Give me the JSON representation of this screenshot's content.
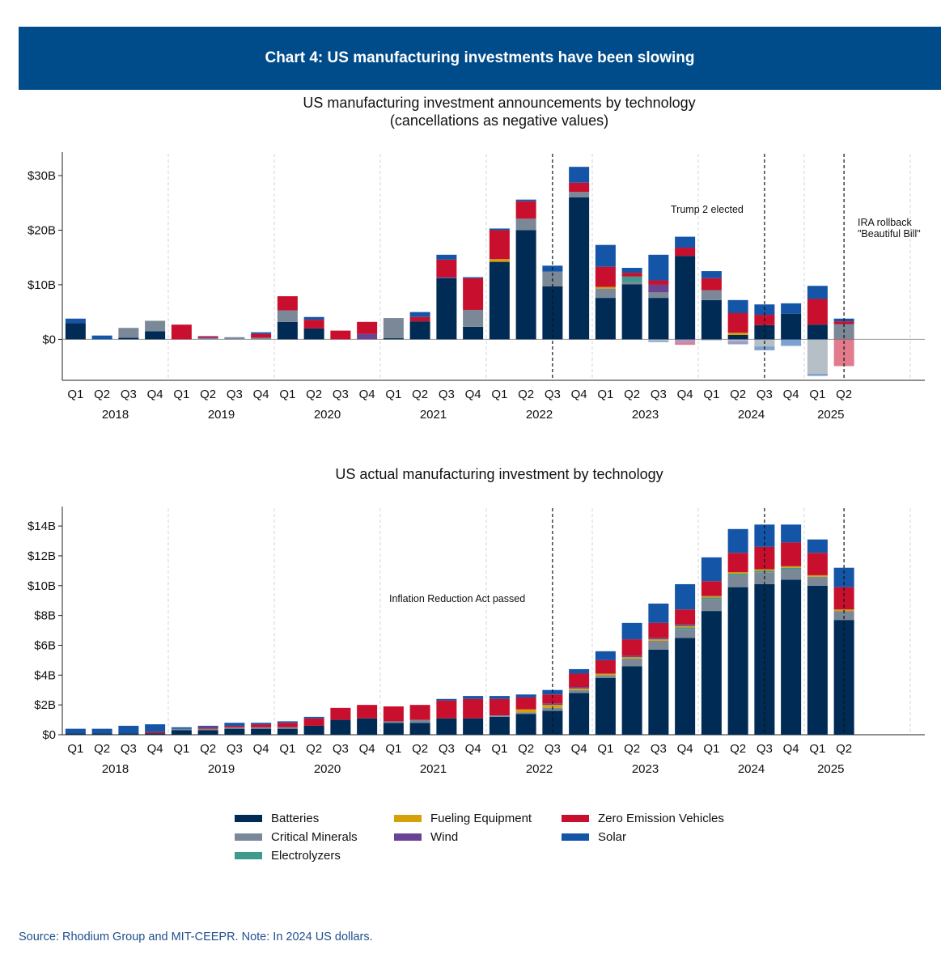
{
  "header": {
    "title": "Chart 4: US manufacturing investments have been slowing"
  },
  "source": "Source: Rhodium Group and MIT-CEEPR. Note: In 2024 US dollars.",
  "colors": {
    "Batteries": "#002b54",
    "Critical Minerals": "#7a8898",
    "Electrolyzers": "#3f9a8e",
    "Fueling Equipment": "#d4a10a",
    "Wind": "#6a4494",
    "Zero Emission Vehicles": "#c8102e",
    "Solar": "#1455a8"
  },
  "chart_data": [
    {
      "type": "bar",
      "stacked": true,
      "title": "US manufacturing investment announcements by technology",
      "subtitle": "(cancellations as negative values)",
      "xlabel": "",
      "ylabel": "",
      "ylim": [
        -7.5,
        34
      ],
      "yticks": [
        0,
        10,
        20,
        30
      ],
      "ytick_labels": [
        "$0",
        "$10B",
        "$20B",
        "$30B"
      ],
      "quarters": [
        "Q1",
        "Q2",
        "Q3",
        "Q4",
        "Q1",
        "Q2",
        "Q3",
        "Q4",
        "Q1",
        "Q2",
        "Q3",
        "Q4",
        "Q1",
        "Q2",
        "Q3",
        "Q4",
        "Q1",
        "Q2",
        "Q3",
        "Q4",
        "Q1",
        "Q2",
        "Q3",
        "Q4",
        "Q1",
        "Q2",
        "Q3",
        "Q4",
        "Q1",
        "Q2"
      ],
      "years": [
        "2018",
        "2019",
        "2020",
        "2021",
        "2022",
        "2023",
        "2024",
        "2025"
      ],
      "annotations": [
        {
          "text": "Trump 2 elected",
          "after_index": 26
        },
        {
          "text": "IRA rollback",
          "text2": "\"Beautiful Bill\"",
          "after_index": 29
        }
      ],
      "event_lines_at_index": [
        18,
        26,
        29
      ],
      "series": [
        {
          "name": "Batteries",
          "values": [
            3,
            0,
            0.3,
            1.5,
            0,
            0,
            0,
            0,
            3.2,
            2,
            0,
            0,
            0.2,
            3.3,
            11.2,
            2.3,
            14.2,
            20,
            9.7,
            26,
            7.6,
            10.1,
            7.6,
            15.3,
            7.2,
            0.8,
            2.6,
            4.7,
            2.7,
            0
          ]
        },
        {
          "name": "Critical Minerals",
          "values": [
            0,
            0,
            1.8,
            1.9,
            0,
            0.2,
            0.4,
            0.3,
            2.1,
            0,
            0,
            0,
            3.7,
            0,
            0,
            3.1,
            0,
            2.1,
            2.7,
            1,
            1.7,
            0.4,
            1,
            0,
            1.8,
            0,
            0,
            0,
            0,
            2.8
          ]
        },
        {
          "name": "Electrolyzers",
          "values": [
            0,
            0,
            0,
            0,
            0,
            0,
            0,
            0,
            0,
            0,
            0,
            0,
            0,
            0,
            0,
            0,
            0,
            0,
            0,
            0,
            0,
            1,
            0,
            0,
            0,
            0,
            0,
            0,
            0,
            0
          ]
        },
        {
          "name": "Fueling Equipment",
          "values": [
            0,
            0,
            0,
            0,
            0,
            0,
            0,
            0,
            0,
            0,
            0,
            0,
            0,
            0,
            0,
            0,
            0.5,
            0,
            0,
            0,
            0.3,
            0,
            0,
            0,
            0,
            0.4,
            0,
            0,
            0,
            0
          ]
        },
        {
          "name": "Wind",
          "values": [
            0,
            0,
            0,
            0,
            0,
            0.2,
            0,
            0,
            0,
            0,
            0,
            1,
            0,
            0,
            0.2,
            0,
            0,
            0,
            0,
            0,
            0,
            0,
            1.4,
            0,
            0,
            0,
            0,
            0,
            0,
            0
          ]
        },
        {
          "name": "Zero Emission Vehicles",
          "values": [
            0,
            0,
            0,
            0,
            2.7,
            0.2,
            0,
            0.7,
            2.6,
            1.6,
            1.6,
            2.2,
            0,
            0.8,
            3.2,
            5.8,
            5.3,
            3.2,
            0,
            1.7,
            3.7,
            0.7,
            0.8,
            1.5,
            2.2,
            3.6,
            1.9,
            0,
            4.7,
            0.5
          ]
        },
        {
          "name": "Solar",
          "values": [
            0.8,
            0.7,
            0,
            0,
            0,
            0,
            0,
            0.3,
            0,
            0.5,
            0,
            0,
            0,
            0.9,
            0.9,
            0.2,
            0.3,
            0.3,
            1.1,
            2.9,
            4,
            0.9,
            4.7,
            2,
            1.3,
            2.4,
            1.9,
            1.9,
            2.4,
            0.5
          ]
        }
      ],
      "negative_series": [
        {
          "name": "Batteries",
          "values": [
            0,
            0,
            0,
            0,
            0,
            0,
            0,
            0,
            0,
            0,
            0,
            0,
            0,
            0,
            0,
            0,
            0,
            0,
            0,
            0,
            0,
            0,
            0,
            0,
            0,
            0,
            0,
            0,
            0,
            0
          ]
        },
        {
          "name": "Critical Minerals",
          "values": [
            0,
            0,
            0,
            0,
            0,
            0,
            0,
            0,
            0,
            0,
            0,
            0,
            0,
            0,
            0,
            0,
            0,
            0,
            0,
            0,
            0,
            0,
            -0.3,
            0,
            -0.2,
            -0.3,
            -1.3,
            0,
            -6.3,
            0
          ]
        },
        {
          "name": "Wind",
          "values": [
            0,
            0,
            0,
            0,
            0,
            0,
            0,
            0,
            0,
            0,
            0,
            0,
            0,
            0,
            0,
            0,
            0,
            0,
            0,
            0,
            0,
            0,
            0,
            -0.6,
            0,
            -0.4,
            0,
            0,
            0,
            0
          ]
        },
        {
          "name": "Zero Emission Vehicles",
          "values": [
            0,
            0,
            0,
            0,
            0,
            0,
            0,
            0,
            0,
            0,
            0,
            0,
            0,
            0,
            0,
            0,
            0,
            0,
            0,
            0,
            0,
            0,
            0,
            -0.4,
            0,
            0,
            0,
            0,
            0,
            -4.9
          ]
        },
        {
          "name": "Solar",
          "values": [
            0,
            0,
            0,
            0,
            0,
            0,
            0,
            0,
            0,
            0,
            0,
            0,
            0,
            0,
            0,
            0,
            0,
            0,
            0,
            0,
            0,
            0,
            -0.2,
            0,
            0,
            -0.2,
            -0.7,
            -1.2,
            -0.4,
            0
          ]
        }
      ]
    },
    {
      "type": "bar",
      "stacked": true,
      "title": "US actual manufacturing investment by technology",
      "xlabel": "",
      "ylabel": "",
      "ylim": [
        0,
        15.2
      ],
      "yticks": [
        0,
        2,
        4,
        6,
        8,
        10,
        12,
        14
      ],
      "ytick_labels": [
        "$0",
        "$2B",
        "$4B",
        "$6B",
        "$8B",
        "$10B",
        "$12B",
        "$14B"
      ],
      "quarters": [
        "Q1",
        "Q2",
        "Q3",
        "Q4",
        "Q1",
        "Q2",
        "Q3",
        "Q4",
        "Q1",
        "Q2",
        "Q3",
        "Q4",
        "Q1",
        "Q2",
        "Q3",
        "Q4",
        "Q1",
        "Q2",
        "Q3",
        "Q4",
        "Q1",
        "Q2",
        "Q3",
        "Q4",
        "Q1",
        "Q2",
        "Q3",
        "Q4",
        "Q1",
        "Q2"
      ],
      "years": [
        "2018",
        "2019",
        "2020",
        "2021",
        "2022",
        "2023",
        "2024",
        "2025"
      ],
      "annotations": [
        {
          "text": "Inflation Reduction Act passed",
          "before_index": 18
        }
      ],
      "event_lines_at_index": [
        18,
        26,
        29
      ],
      "series": [
        {
          "name": "Batteries",
          "values": [
            0.1,
            0.1,
            0.1,
            0.1,
            0.3,
            0.3,
            0.4,
            0.4,
            0.4,
            0.6,
            1,
            1.1,
            0.8,
            0.8,
            1.1,
            1.1,
            1.2,
            1.4,
            1.6,
            2.8,
            3.8,
            4.6,
            5.7,
            6.5,
            8.3,
            9.9,
            10.1,
            10.4,
            10,
            7.7
          ]
        },
        {
          "name": "Critical Minerals",
          "values": [
            0,
            0,
            0,
            0,
            0.1,
            0.1,
            0.1,
            0.1,
            0.1,
            0,
            0,
            0,
            0.1,
            0.2,
            0,
            0,
            0.1,
            0.1,
            0.2,
            0.2,
            0.2,
            0.5,
            0.6,
            0.6,
            0.8,
            0.8,
            0.8,
            0.7,
            0.6,
            0.6
          ]
        },
        {
          "name": "Electrolyzers",
          "values": [
            0,
            0,
            0,
            0,
            0,
            0,
            0,
            0,
            0,
            0,
            0,
            0,
            0,
            0,
            0,
            0,
            0,
            0,
            0,
            0,
            0,
            0,
            0,
            0.1,
            0.1,
            0.1,
            0.1,
            0.1,
            0,
            0
          ]
        },
        {
          "name": "Fueling Equipment",
          "values": [
            0,
            0,
            0,
            0,
            0,
            0,
            0,
            0,
            0,
            0,
            0,
            0,
            0,
            0,
            0,
            0,
            0,
            0.2,
            0.2,
            0.1,
            0.1,
            0.1,
            0.1,
            0.1,
            0.1,
            0.1,
            0.1,
            0.1,
            0.1,
            0.1
          ]
        },
        {
          "name": "Wind",
          "values": [
            0,
            0,
            0,
            0,
            0,
            0,
            0,
            0,
            0,
            0,
            0,
            0,
            0,
            0,
            0,
            0,
            0,
            0,
            0.1,
            0.1,
            0,
            0.1,
            0.1,
            0.1,
            0,
            0,
            0,
            0,
            0,
            0
          ]
        },
        {
          "name": "Zero Emission Vehicles",
          "values": [
            0,
            0,
            0,
            0.1,
            0,
            0.1,
            0.1,
            0.2,
            0.3,
            0.5,
            0.8,
            0.9,
            1,
            1,
            1.2,
            1.3,
            1.1,
            0.8,
            0.6,
            0.9,
            0.9,
            1.1,
            1,
            1,
            1,
            1.3,
            1.5,
            1.6,
            1.5,
            1.5
          ]
        },
        {
          "name": "Solar",
          "values": [
            0.3,
            0.3,
            0.5,
            0.5,
            0.1,
            0.1,
            0.2,
            0.1,
            0.1,
            0.1,
            0,
            0,
            0,
            0,
            0.1,
            0.2,
            0.2,
            0.2,
            0.3,
            0.3,
            0.6,
            1.1,
            1.3,
            1.7,
            1.6,
            1.6,
            1.5,
            1.2,
            0.9,
            1.3
          ]
        }
      ]
    }
  ],
  "legend": {
    "items": [
      {
        "name": "Batteries",
        "label": "Batteries"
      },
      {
        "name": "Critical Minerals",
        "label": "Critical Minerals"
      },
      {
        "name": "Electrolyzers",
        "label": "Electrolyzers"
      },
      {
        "name": "Fueling Equipment",
        "label": "Fueling Equipment"
      },
      {
        "name": "Wind",
        "label": "Wind"
      },
      {
        "name": "Zero Emission Vehicles",
        "label": "Zero Emission Vehicles"
      },
      {
        "name": "Solar",
        "label": "Solar"
      }
    ]
  }
}
